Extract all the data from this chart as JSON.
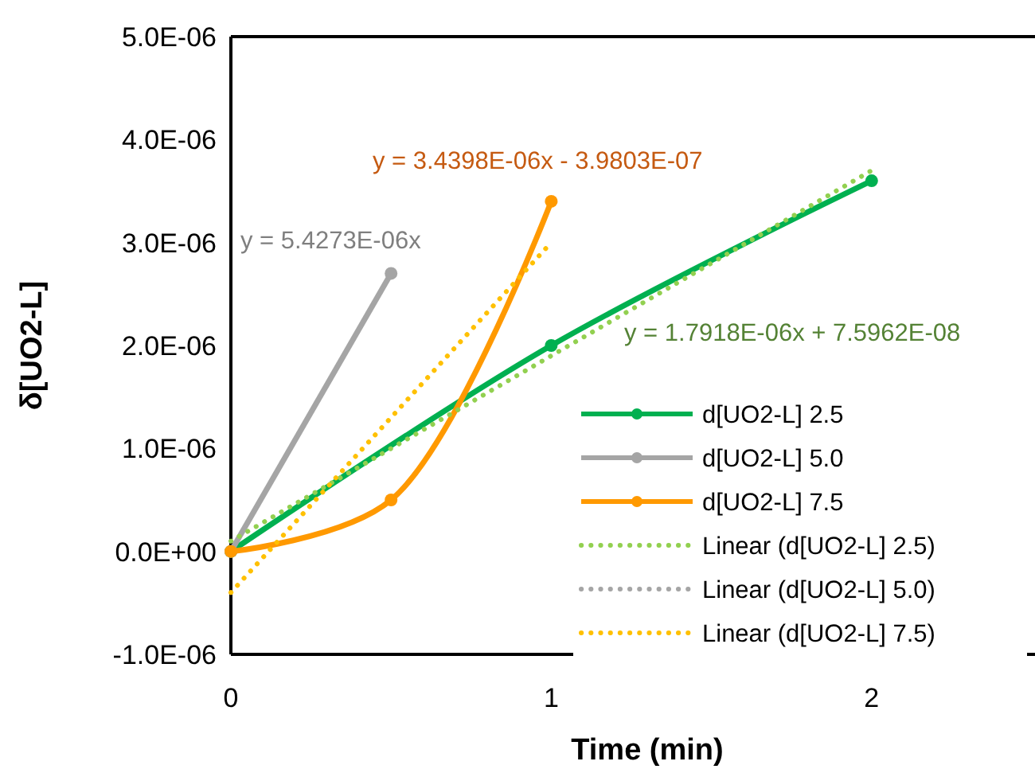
{
  "chart_data": {
    "type": "line",
    "xlabel": "Time (min)",
    "ylabel": "δ[UO2-L]",
    "xlim": [
      0,
      2.5
    ],
    "xticks": [
      0,
      1,
      2
    ],
    "ylim": [
      -1e-06,
      5e-06
    ],
    "yticks": [
      {
        "value": -1e-06,
        "label": "-1.0E-06"
      },
      {
        "value": 0,
        "label": "0.0E+00"
      },
      {
        "value": 1e-06,
        "label": "1.0E-06"
      },
      {
        "value": 2e-06,
        "label": "2.0E-06"
      },
      {
        "value": 3e-06,
        "label": "3.0E-06"
      },
      {
        "value": 4e-06,
        "label": "4.0E-06"
      },
      {
        "value": 5e-06,
        "label": "5.0E-06"
      }
    ],
    "grid": false,
    "legend": "bottom right",
    "series": [
      {
        "name": "d[UO2-L] 2.5",
        "color": "#00b050",
        "x": [
          0,
          1,
          2
        ],
        "values": [
          0,
          2e-06,
          3.6e-06
        ],
        "marker": "circle",
        "line_style": "solid"
      },
      {
        "name": "d[UO2-L] 5.0",
        "color": "#a5a5a5",
        "x": [
          0,
          0.5
        ],
        "values": [
          0,
          2.7e-06
        ],
        "marker": "circle",
        "line_style": "solid"
      },
      {
        "name": "d[UO2-L] 7.5",
        "color": "#ff9900",
        "x": [
          0,
          0.5,
          1
        ],
        "values": [
          0,
          5e-07,
          3.4e-06
        ],
        "marker": "circle",
        "line_style": "solid"
      },
      {
        "name": "Linear (d[UO2-L] 2.5)",
        "color": "#92d050",
        "x": [
          0,
          2
        ],
        "values": [
          1e-07,
          3.7e-06
        ],
        "marker": "none",
        "line_style": "dotted"
      },
      {
        "name": "Linear (d[UO2-L] 5.0)",
        "color": "#a5a5a5",
        "values": [
          null,
          null
        ],
        "marker": "none",
        "line_style": "dotted"
      },
      {
        "name": "Linear (d[UO2-L] 7.5)",
        "color": "#ffc000",
        "x": [
          0,
          1
        ],
        "values": [
          -4e-07,
          3e-06
        ],
        "marker": "none",
        "line_style": "dotted"
      }
    ],
    "annotations": [
      "y = 1.7918E-06x + 7.5962E-08",
      "y = 5.4273E-06x",
      "y = 3.4398E-06x - 3.9803E-07"
    ]
  }
}
